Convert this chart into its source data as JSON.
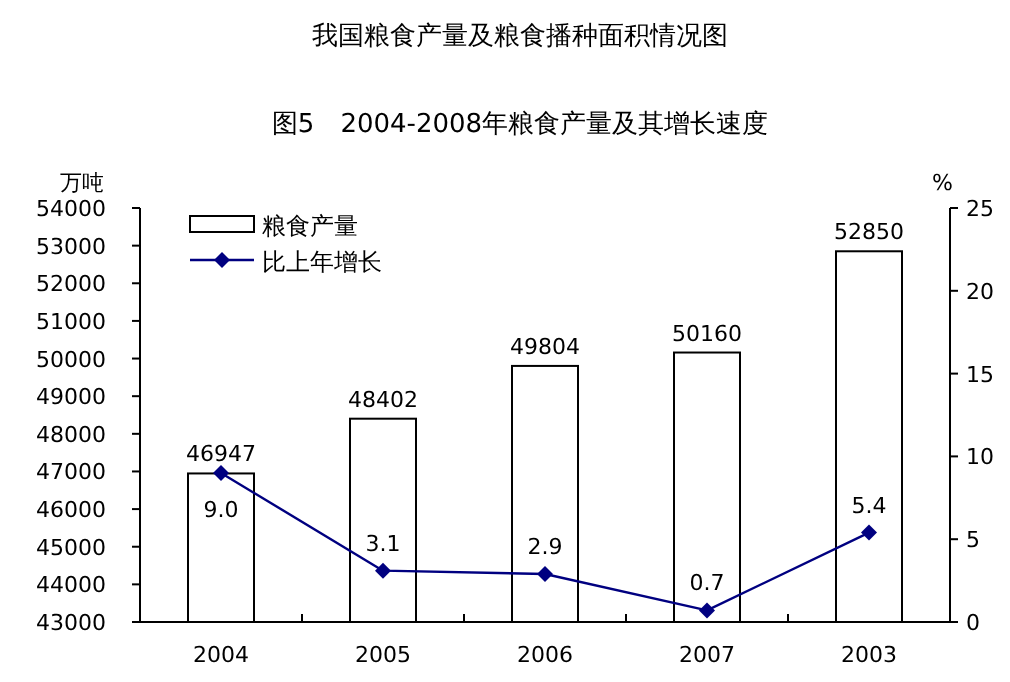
{
  "chart_data": {
    "type": "bar",
    "title": "我国粮食产量及粮食播种面积情况图",
    "subtitle": "图5　2004-2008年粮食产量及其增长速度",
    "ylabel": "万吨",
    "y2label": "%",
    "categories": [
      "2004",
      "2005",
      "2006",
      "2007",
      "2003"
    ],
    "series": [
      {
        "name": "粮食产量",
        "color": "#ffffff",
        "values": [
          46947,
          48402,
          49804,
          50160,
          52850
        ],
        "value_labels": [
          "46947",
          "48402",
          "49804",
          "50160",
          "52850"
        ]
      },
      {
        "name": "比上年增长",
        "type": "line",
        "axis": "y2",
        "color": "#000080",
        "values": [
          9.0,
          3.1,
          2.9,
          0.7,
          5.4
        ],
        "value_labels": [
          "9.0",
          "3.1",
          "2.9",
          "0.7",
          "5.4"
        ]
      }
    ],
    "ylim": [
      43000,
      54000
    ],
    "yticks": [
      43000,
      44000,
      45000,
      46000,
      47000,
      48000,
      49000,
      50000,
      51000,
      52000,
      53000,
      54000
    ],
    "y2lim": [
      0,
      25
    ],
    "y2ticks": [
      0,
      5,
      10,
      15,
      20,
      25
    ],
    "legend": "top left",
    "marker": "diamond",
    "line_style": "solid",
    "grid": false
  }
}
